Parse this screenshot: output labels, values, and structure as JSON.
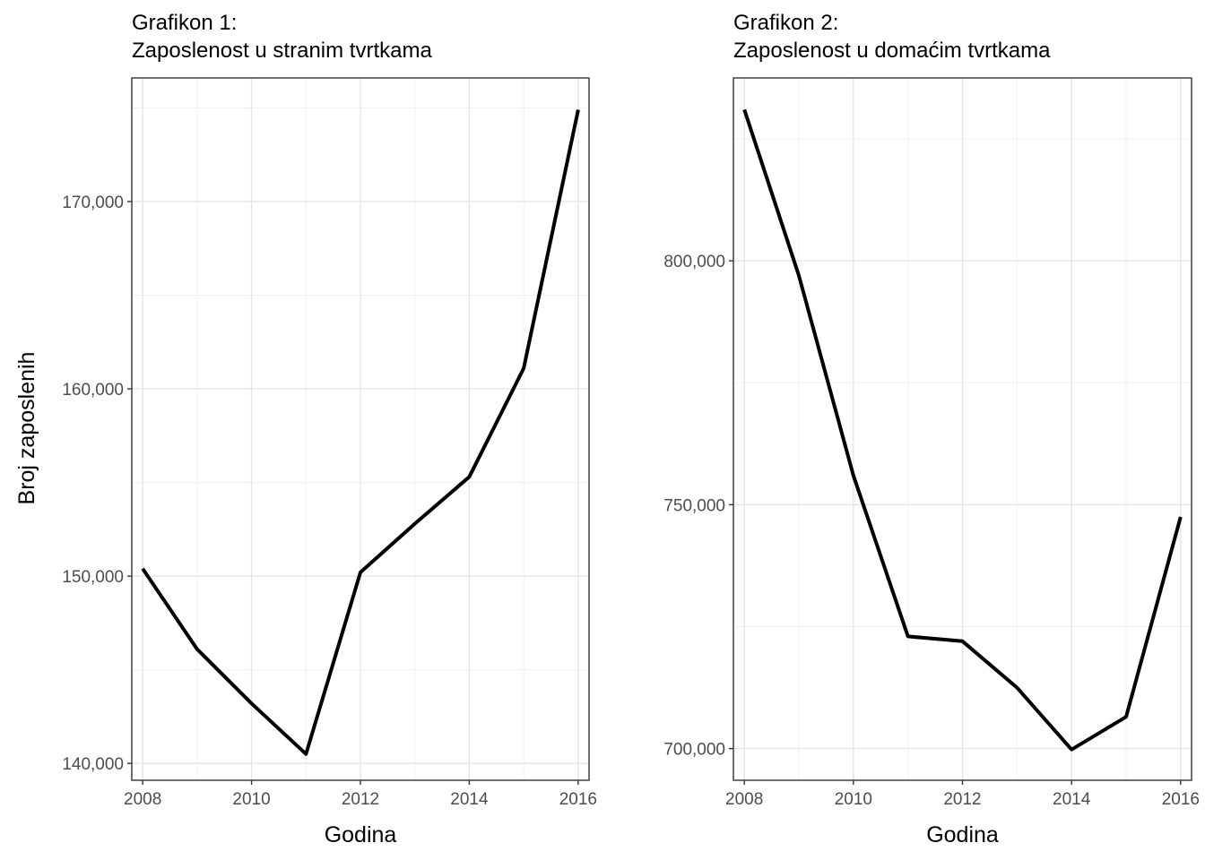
{
  "axis_label_y": "Broj zaposlenih",
  "chart_data": [
    {
      "type": "line",
      "title": "Grafikon 1:",
      "subtitle": "Zaposlenost u stranim tvrtkama",
      "xlabel": "Godina",
      "ylabel": "Broj zaposlenih",
      "x": [
        2008,
        2009,
        2010,
        2011,
        2012,
        2013,
        2014,
        2015,
        2016
      ],
      "values": [
        150400,
        146100,
        143200,
        140500,
        150200,
        152800,
        155300,
        161100,
        174900
      ],
      "xlim": [
        2007.8,
        2016.2
      ],
      "ylim": [
        139100,
        176600
      ],
      "xticks": [
        2008,
        2010,
        2012,
        2014,
        2016
      ],
      "xtick_labels": [
        "2008",
        "2010",
        "2012",
        "2014",
        "2016"
      ],
      "yticks": [
        140000,
        150000,
        160000,
        170000
      ],
      "ytick_labels": [
        "140,000",
        "150,000",
        "160,000",
        "170,000"
      ],
      "grid": true,
      "line_color": "#000000"
    },
    {
      "type": "line",
      "title": "Grafikon 2:",
      "subtitle": "Zaposlenost u domaćim tvrtkama",
      "xlabel": "Godina",
      "x": [
        2008,
        2009,
        2010,
        2011,
        2012,
        2013,
        2014,
        2015,
        2016
      ],
      "values": [
        831000,
        797000,
        756000,
        723000,
        722000,
        712500,
        699800,
        706500,
        747500
      ],
      "xlim": [
        2007.8,
        2016.2
      ],
      "ylim": [
        693500,
        837500
      ],
      "xticks": [
        2008,
        2010,
        2012,
        2014,
        2016
      ],
      "xtick_labels": [
        "2008",
        "2010",
        "2012",
        "2014",
        "2016"
      ],
      "yticks": [
        700000,
        750000,
        800000
      ],
      "ytick_labels": [
        "700,000",
        "750,000",
        "800,000"
      ],
      "grid": true,
      "line_color": "#000000"
    }
  ]
}
